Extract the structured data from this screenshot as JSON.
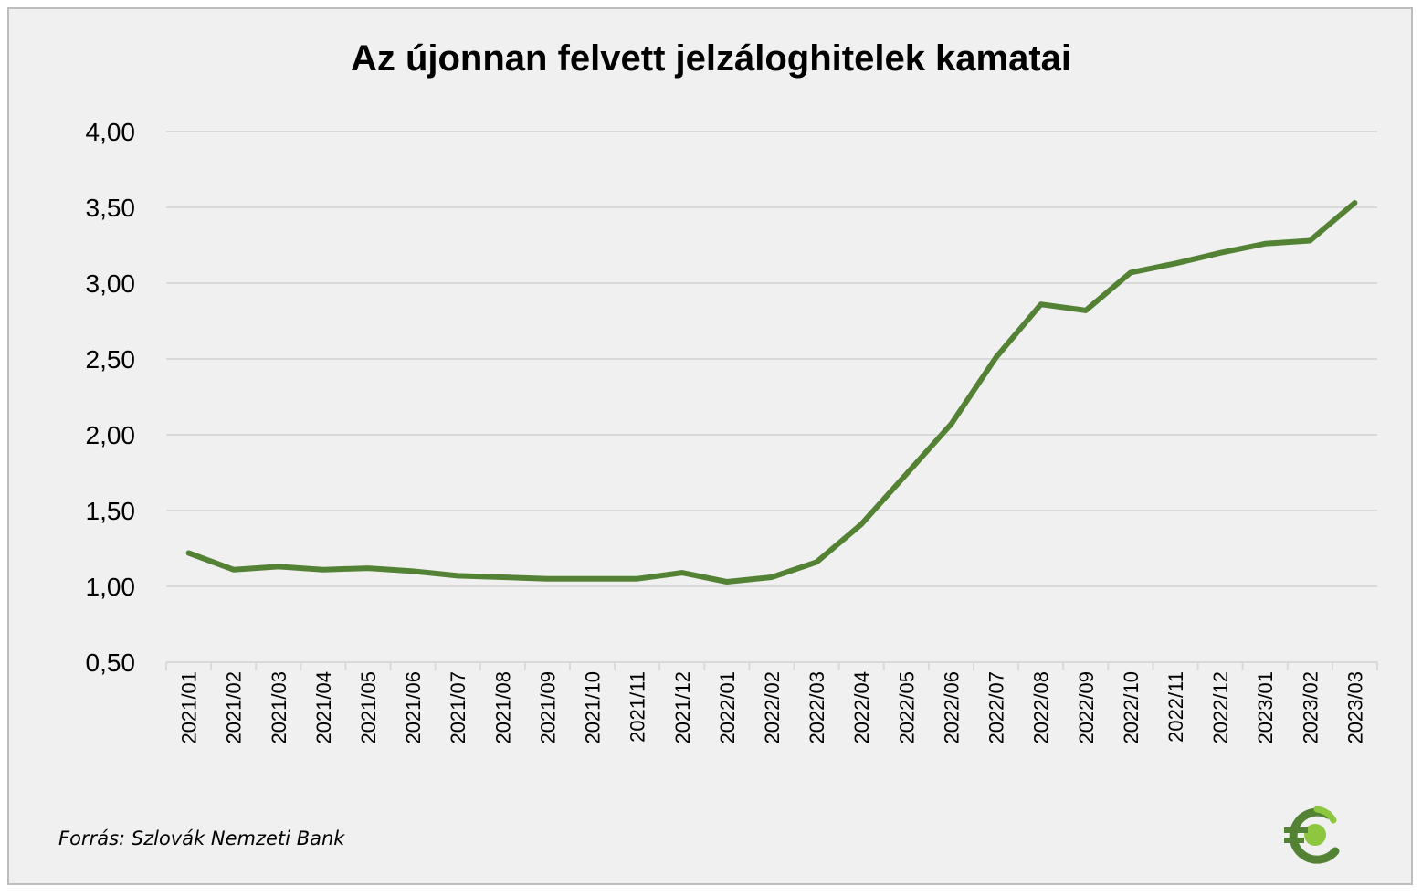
{
  "chart_data": {
    "type": "line",
    "title": "Az újonnan felvett jelzáloghitelek kamatai",
    "source": "Forrás: Szlovák Nemzeti Bank",
    "categories": [
      "2021/01",
      "2021/02",
      "2021/03",
      "2021/04",
      "2021/05",
      "2021/06",
      "2021/07",
      "2021/08",
      "2021/09",
      "2021/10",
      "2021/11",
      "2021/12",
      "2022/01",
      "2022/02",
      "2022/03",
      "2022/04",
      "2022/05",
      "2022/06",
      "2022/07",
      "2022/08",
      "2022/09",
      "2022/10",
      "2022/11",
      "2022/12",
      "2023/01",
      "2023/02",
      "2023/03"
    ],
    "series": [
      {
        "values": [
          1.22,
          1.11,
          1.13,
          1.11,
          1.12,
          1.1,
          1.07,
          1.06,
          1.05,
          1.05,
          1.05,
          1.09,
          1.03,
          1.06,
          1.16,
          1.41,
          1.74,
          2.07,
          2.51,
          2.86,
          2.82,
          3.07,
          3.13,
          3.2,
          3.26,
          3.28,
          3.53
        ]
      }
    ],
    "yticks": [
      "0,50",
      "1,00",
      "1,50",
      "2,00",
      "2,50",
      "3,00",
      "3,50",
      "4,00"
    ],
    "ylim": [
      0.5,
      4.0
    ],
    "grid": true,
    "legend": "none",
    "line_color": "#548235"
  },
  "logo": {
    "icon": "euro-coin-logo-icon",
    "colors": [
      "#548235",
      "#8dc63f"
    ]
  }
}
